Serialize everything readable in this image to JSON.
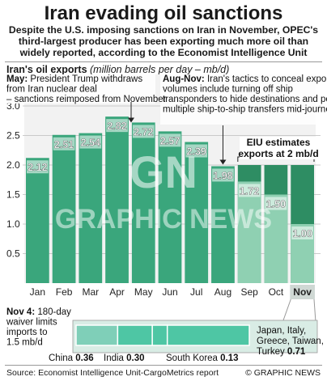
{
  "header": {
    "title": "Iran evading oil sanctions",
    "subtitle": "Despite the U.S. imposing sanctions on Iran in November, OPEC's third-largest producer has been exporting much more oil than widely reported, according to the Economist Intelligence Unit"
  },
  "chart_label": {
    "main": "Iran's oil exports",
    "unit": "(million barrels per day – mb/d)"
  },
  "annotations": {
    "may": {
      "bold": "May:",
      "text": " President Trump withdraws from Iran nuclear deal – sanctions reimposed from November"
    },
    "aug_nov": {
      "bold": "Aug-Nov:",
      "text": " Iran's tactics to conceal export volumes include turning off ship transponders to hide destinations and performing multiple ship-to-ship transfers mid-journey"
    },
    "eiu": "EIU estimates exports at 2 mb/d",
    "nov4": {
      "bold": "Nov 4:",
      "text": " 180-day waiver limits imports to 1.5 mb/d"
    }
  },
  "waiver_labels": {
    "china": {
      "name": "China",
      "value": "0.36"
    },
    "india": {
      "name": "India",
      "value": "0.30"
    },
    "south_korea": {
      "name": "South Korea",
      "value": "0.13"
    },
    "others": {
      "name": "Japan, Italy, Greece, Taiwan, Turkey",
      "value": "0.71"
    }
  },
  "footer": {
    "source": "Source: Economist Intelligence Unit-CargoMetrics report",
    "credit": "© GRAPHIC NEWS"
  },
  "watermark": "GRAPHIC NEWS",
  "colors": {
    "bar": "#3aa67c",
    "bar_light": "#8fd0b2",
    "estimate_dark": "#2e8d63",
    "waiver_bar": "#4ec6a4",
    "waiver_back": "#7fcfb8",
    "grid": "#bbbbbb",
    "title": "#111111"
  },
  "chart_data": {
    "type": "bar",
    "categories": [
      "Jan",
      "Feb",
      "Mar",
      "Apr",
      "May",
      "Jun",
      "Jul",
      "Aug",
      "Sep",
      "Oct",
      "Nov"
    ],
    "values": [
      2.12,
      2.51,
      2.54,
      2.82,
      2.72,
      2.57,
      2.39,
      1.98,
      1.72,
      1.5,
      1.0
    ],
    "estimates": {
      "Sep": 2.0,
      "Oct": 2.0,
      "Nov": 2.0
    },
    "highlight": "Nov",
    "ylim": [
      0,
      3.0
    ],
    "yticks": [
      0.5,
      1.0,
      1.5,
      2.0,
      2.5,
      3.0
    ],
    "ytick_labels": [
      "0.5",
      "1.0",
      "1.5",
      "2.0",
      "2.5",
      "3.0"
    ],
    "grid": true,
    "waiver": {
      "limit": 1.5,
      "segments": [
        {
          "name": "China",
          "value": 0.36
        },
        {
          "name": "India",
          "value": 0.3
        },
        {
          "name": "South Korea",
          "value": 0.13
        },
        {
          "name": "Japan, Italy, Greece, Taiwan, Turkey",
          "value": 0.71
        }
      ]
    }
  }
}
